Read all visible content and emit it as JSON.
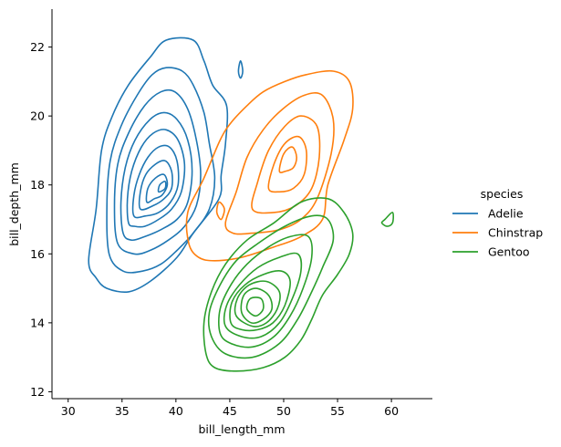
{
  "chart_data": {
    "type": "kde-contour",
    "xlabel": "bill_length_mm",
    "ylabel": "bill_depth_mm",
    "xlim": [
      28.5,
      63.8
    ],
    "ylim": [
      11.8,
      23.1
    ],
    "xticks": [
      30,
      35,
      40,
      45,
      50,
      55,
      60
    ],
    "yticks": [
      12,
      14,
      16,
      18,
      20,
      22
    ],
    "grid": false,
    "legend": {
      "title": "species",
      "position": "right"
    },
    "series": [
      {
        "name": "Adelie",
        "color": "#1f77b4",
        "levels": [
          [
            [
              32.6,
              15.3
            ],
            [
              31.9,
              15.8
            ],
            [
              32.6,
              17.3
            ],
            [
              33.1,
              19.0
            ],
            [
              34.1,
              20.0
            ],
            [
              35.6,
              20.9
            ],
            [
              37.6,
              21.7
            ],
            [
              39.1,
              22.2
            ],
            [
              41.6,
              22.2
            ],
            [
              42.6,
              21.6
            ],
            [
              43.4,
              20.9
            ],
            [
              44.7,
              20.3
            ],
            [
              44.6,
              19.2
            ],
            [
              44.2,
              18.3
            ],
            [
              44.0,
              17.6
            ],
            [
              41.6,
              16.6
            ],
            [
              40.1,
              15.9
            ],
            [
              37.6,
              15.2
            ],
            [
              35.6,
              14.9
            ],
            [
              33.6,
              15.0
            ]
          ],
          [
            [
              33.8,
              16.0
            ],
            [
              33.6,
              17.4
            ],
            [
              33.9,
              18.7
            ],
            [
              34.9,
              19.7
            ],
            [
              36.4,
              20.6
            ],
            [
              37.8,
              21.2
            ],
            [
              39.1,
              21.4
            ],
            [
              40.6,
              21.3
            ],
            [
              41.6,
              20.9
            ],
            [
              42.6,
              20.1
            ],
            [
              43.1,
              19.2
            ],
            [
              43.6,
              18.2
            ],
            [
              43.1,
              17.3
            ],
            [
              41.6,
              16.6
            ],
            [
              40.1,
              16.1
            ],
            [
              38.6,
              15.7
            ],
            [
              36.9,
              15.5
            ],
            [
              35.1,
              15.5
            ]
          ],
          [
            [
              34.6,
              16.3
            ],
            [
              34.3,
              17.4
            ],
            [
              34.6,
              18.6
            ],
            [
              35.6,
              19.5
            ],
            [
              37.1,
              20.3
            ],
            [
              38.6,
              20.7
            ],
            [
              39.9,
              20.7
            ],
            [
              41.1,
              20.2
            ],
            [
              41.9,
              19.3
            ],
            [
              42.3,
              18.3
            ],
            [
              41.9,
              17.4
            ],
            [
              40.8,
              16.8
            ],
            [
              39.3,
              16.4
            ],
            [
              37.6,
              16.1
            ],
            [
              36.1,
              16.0
            ]
          ],
          [
            [
              35.1,
              16.6
            ],
            [
              34.9,
              17.5
            ],
            [
              35.3,
              18.5
            ],
            [
              36.2,
              19.3
            ],
            [
              37.6,
              19.9
            ],
            [
              38.9,
              20.1
            ],
            [
              40.1,
              19.9
            ],
            [
              41.1,
              19.3
            ],
            [
              41.5,
              18.4
            ],
            [
              41.1,
              17.5
            ],
            [
              40.1,
              17.0
            ],
            [
              38.6,
              16.7
            ],
            [
              37.1,
              16.5
            ],
            [
              35.9,
              16.4
            ]
          ],
          [
            [
              35.6,
              16.9
            ],
            [
              35.5,
              17.6
            ],
            [
              35.9,
              18.4
            ],
            [
              36.8,
              19.1
            ],
            [
              37.9,
              19.5
            ],
            [
              39.1,
              19.6
            ],
            [
              40.2,
              19.3
            ],
            [
              40.8,
              18.6
            ],
            [
              40.5,
              17.8
            ],
            [
              39.6,
              17.3
            ],
            [
              38.4,
              17.0
            ],
            [
              37.1,
              16.8
            ],
            [
              36.2,
              16.8
            ]
          ],
          [
            [
              36.1,
              17.1
            ],
            [
              36.1,
              17.7
            ],
            [
              36.6,
              18.3
            ],
            [
              37.4,
              18.8
            ],
            [
              38.4,
              19.1
            ],
            [
              39.4,
              19.1
            ],
            [
              40.1,
              18.7
            ],
            [
              40.2,
              18.0
            ],
            [
              39.5,
              17.5
            ],
            [
              38.4,
              17.2
            ],
            [
              37.2,
              17.1
            ]
          ],
          [
            [
              36.7,
              17.3
            ],
            [
              36.7,
              17.8
            ],
            [
              37.2,
              18.3
            ],
            [
              38.1,
              18.6
            ],
            [
              39.0,
              18.7
            ],
            [
              39.6,
              18.4
            ],
            [
              39.6,
              17.9
            ],
            [
              38.9,
              17.6
            ],
            [
              37.9,
              17.4
            ]
          ],
          [
            [
              37.3,
              17.5
            ],
            [
              37.4,
              17.9
            ],
            [
              38.1,
              18.2
            ],
            [
              38.9,
              18.3
            ],
            [
              39.2,
              18.0
            ],
            [
              38.7,
              17.7
            ],
            [
              38.0,
              17.6
            ]
          ],
          [
            [
              38.4,
              17.8
            ],
            [
              38.5,
              18.0
            ],
            [
              39.0,
              18.1
            ],
            [
              39.0,
              17.9
            ]
          ],
          [
            [
              45.8,
              21.3
            ],
            [
              46.0,
              21.6
            ],
            [
              46.2,
              21.3
            ],
            [
              46.0,
              21.1
            ]
          ]
        ]
      },
      {
        "name": "Chinstrap",
        "color": "#ff7f0e",
        "levels": [
          [
            [
              41.2,
              16.3
            ],
            [
              41.1,
              17.2
            ],
            [
              42.6,
              18.2
            ],
            [
              44.1,
              19.3
            ],
            [
              45.1,
              19.8
            ],
            [
              46.6,
              20.3
            ],
            [
              48.1,
              20.7
            ],
            [
              50.1,
              21.0
            ],
            [
              52.1,
              21.2
            ],
            [
              54.6,
              21.3
            ],
            [
              56.1,
              21.0
            ],
            [
              56.4,
              20.2
            ],
            [
              55.6,
              19.3
            ],
            [
              54.1,
              18.0
            ],
            [
              53.6,
              17.0
            ],
            [
              51.6,
              16.5
            ],
            [
              49.1,
              16.2
            ],
            [
              46.1,
              15.9
            ],
            [
              43.6,
              15.8
            ],
            [
              42.1,
              15.9
            ]
          ],
          [
            [
              44.6,
              16.9
            ],
            [
              45.6,
              17.8
            ],
            [
              46.6,
              18.8
            ],
            [
              48.1,
              19.6
            ],
            [
              49.9,
              20.2
            ],
            [
              51.9,
              20.6
            ],
            [
              53.6,
              20.6
            ],
            [
              54.6,
              19.9
            ],
            [
              54.4,
              18.9
            ],
            [
              53.1,
              17.6
            ],
            [
              51.6,
              17.0
            ],
            [
              49.6,
              16.7
            ],
            [
              47.1,
              16.6
            ],
            [
              45.3,
              16.6
            ]
          ],
          [
            [
              47.1,
              17.3
            ],
            [
              47.6,
              18.1
            ],
            [
              48.6,
              19.0
            ],
            [
              50.1,
              19.7
            ],
            [
              51.6,
              20.0
            ],
            [
              53.1,
              19.7
            ],
            [
              53.3,
              18.8
            ],
            [
              52.6,
              17.9
            ],
            [
              51.1,
              17.4
            ],
            [
              49.1,
              17.2
            ]
          ],
          [
            [
              48.6,
              17.9
            ],
            [
              49.1,
              18.6
            ],
            [
              50.1,
              19.2
            ],
            [
              51.4,
              19.4
            ],
            [
              52.1,
              19.0
            ],
            [
              51.9,
              18.3
            ],
            [
              50.9,
              17.9
            ],
            [
              49.6,
              17.8
            ]
          ],
          [
            [
              49.6,
              18.4
            ],
            [
              50.0,
              18.9
            ],
            [
              50.8,
              19.1
            ],
            [
              51.2,
              18.8
            ],
            [
              50.9,
              18.5
            ],
            [
              50.2,
              18.4
            ]
          ],
          [
            [
              43.8,
              17.2
            ],
            [
              44.0,
              17.5
            ],
            [
              44.5,
              17.3
            ],
            [
              44.2,
              17.0
            ]
          ]
        ]
      },
      {
        "name": "Gentoo",
        "color": "#2ca02c",
        "levels": [
          [
            [
              42.8,
              13.1
            ],
            [
              42.6,
              14.0
            ],
            [
              43.3,
              14.9
            ],
            [
              44.6,
              15.7
            ],
            [
              46.6,
              16.4
            ],
            [
              49.1,
              16.9
            ],
            [
              51.6,
              17.5
            ],
            [
              54.1,
              17.6
            ],
            [
              55.6,
              17.2
            ],
            [
              56.4,
              16.6
            ],
            [
              56.1,
              16.0
            ],
            [
              55.0,
              15.4
            ],
            [
              53.6,
              14.8
            ],
            [
              52.6,
              14.1
            ],
            [
              51.6,
              13.5
            ],
            [
              50.1,
              13.0
            ],
            [
              48.1,
              12.7
            ],
            [
              45.6,
              12.6
            ],
            [
              43.6,
              12.7
            ]
          ],
          [
            [
              43.3,
              13.6
            ],
            [
              43.1,
              14.3
            ],
            [
              44.1,
              15.1
            ],
            [
              45.6,
              15.8
            ],
            [
              47.6,
              16.3
            ],
            [
              50.1,
              16.8
            ],
            [
              52.6,
              17.1
            ],
            [
              54.1,
              17.0
            ],
            [
              54.6,
              16.4
            ],
            [
              53.6,
              15.6
            ],
            [
              52.6,
              14.9
            ],
            [
              51.3,
              14.1
            ],
            [
              49.6,
              13.4
            ],
            [
              47.1,
              13.0
            ],
            [
              44.6,
              13.1
            ]
          ],
          [
            [
              44.1,
              13.7
            ],
            [
              44.1,
              14.4
            ],
            [
              45.1,
              15.1
            ],
            [
              46.6,
              15.7
            ],
            [
              48.6,
              16.2
            ],
            [
              50.6,
              16.5
            ],
            [
              52.3,
              16.5
            ],
            [
              52.6,
              15.9
            ],
            [
              51.8,
              15.0
            ],
            [
              50.6,
              14.2
            ],
            [
              49.1,
              13.6
            ],
            [
              47.1,
              13.3
            ],
            [
              45.1,
              13.4
            ]
          ],
          [
            [
              44.6,
              13.9
            ],
            [
              44.7,
              14.5
            ],
            [
              45.9,
              15.1
            ],
            [
              47.6,
              15.6
            ],
            [
              49.6,
              15.9
            ],
            [
              51.3,
              16.0
            ],
            [
              51.6,
              15.5
            ],
            [
              50.8,
              14.7
            ],
            [
              49.6,
              14.0
            ],
            [
              47.9,
              13.6
            ],
            [
              46.1,
              13.6
            ]
          ],
          [
            [
              45.1,
              14.0
            ],
            [
              45.2,
              14.6
            ],
            [
              46.4,
              15.1
            ],
            [
              48.1,
              15.4
            ],
            [
              49.8,
              15.5
            ],
            [
              50.6,
              15.2
            ],
            [
              50.1,
              14.5
            ],
            [
              49.0,
              14.0
            ],
            [
              47.6,
              13.8
            ],
            [
              46.1,
              13.8
            ]
          ],
          [
            [
              45.6,
              14.2
            ],
            [
              45.7,
              14.7
            ],
            [
              46.8,
              15.1
            ],
            [
              48.4,
              15.2
            ],
            [
              49.6,
              14.9
            ],
            [
              49.4,
              14.4
            ],
            [
              48.4,
              14.0
            ],
            [
              47.1,
              13.9
            ]
          ],
          [
            [
              46.1,
              14.3
            ],
            [
              46.3,
              14.8
            ],
            [
              47.4,
              15.0
            ],
            [
              48.6,
              14.8
            ],
            [
              48.9,
              14.4
            ],
            [
              48.1,
              14.1
            ],
            [
              47.0,
              14.0
            ]
          ],
          [
            [
              46.6,
              14.4
            ],
            [
              46.9,
              14.7
            ],
            [
              47.9,
              14.7
            ],
            [
              48.1,
              14.4
            ],
            [
              47.4,
              14.2
            ]
          ],
          [
            [
              59.1,
              16.9
            ],
            [
              59.4,
              17.0
            ],
            [
              60.1,
              17.2
            ],
            [
              60.1,
              16.9
            ],
            [
              59.6,
              16.8
            ]
          ]
        ]
      }
    ]
  }
}
